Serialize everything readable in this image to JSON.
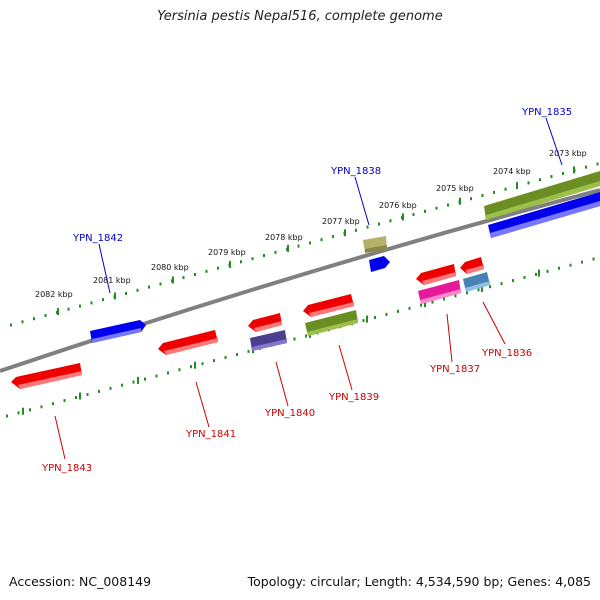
{
  "title": "Yersinia pestis Nepal516, complete genome",
  "accession": "Accession: NC_008149",
  "summary": "Topology: circular; Length: 4,534,590 bp; Genes: 4,085",
  "colors": {
    "backbone": "#808080",
    "forward_label": "#0000cc",
    "reverse_label": "#cc0000",
    "ticks": "#228b22"
  },
  "kbp_labels": [
    "2082 kbp",
    "2081 kbp",
    "2080 kbp",
    "2079 kbp",
    "2078 kbp",
    "2077 kbp",
    "2076 kbp",
    "2075 kbp",
    "2074 kbp",
    "2073 kbp"
  ],
  "gene_labels": {
    "forward": [
      "YPN_1842",
      "YPN_1838",
      "YPN_1835"
    ],
    "reverse": [
      "YPN_1843",
      "YPN_1841",
      "YPN_1840",
      "YPN_1839",
      "YPN_1837",
      "YPN_1836"
    ]
  },
  "features": [
    {
      "name": "YPN_1842-gene",
      "color": "#0000ee"
    },
    {
      "name": "YPN_1838-gene",
      "color": "#0000ee"
    },
    {
      "name": "forward-khaki-feature",
      "color": "#b5b06a"
    },
    {
      "name": "YPN_1835-olive-feature",
      "color": "#6b8e23"
    },
    {
      "name": "YPN_1835-gene",
      "color": "#0000ee"
    },
    {
      "name": "YPN_1843-gene",
      "color": "#ee0000"
    },
    {
      "name": "YPN_1841-gene",
      "color": "#ee0000"
    },
    {
      "name": "YPN_1840-gene",
      "color": "#ee0000"
    },
    {
      "name": "YPN_1840-slate-feature",
      "color": "#4b3d8f"
    },
    {
      "name": "YPN_1839-gene",
      "color": "#ee0000"
    },
    {
      "name": "YPN_1839-olive-feature",
      "color": "#6b8e23"
    },
    {
      "name": "YPN_1837-gene",
      "color": "#ee0000"
    },
    {
      "name": "YPN_1837-magenta-feature",
      "color": "#e6199b"
    },
    {
      "name": "YPN_1836-gene",
      "color": "#ee0000"
    },
    {
      "name": "YPN_1836-steelblue-feature",
      "color": "#4682b4"
    }
  ]
}
